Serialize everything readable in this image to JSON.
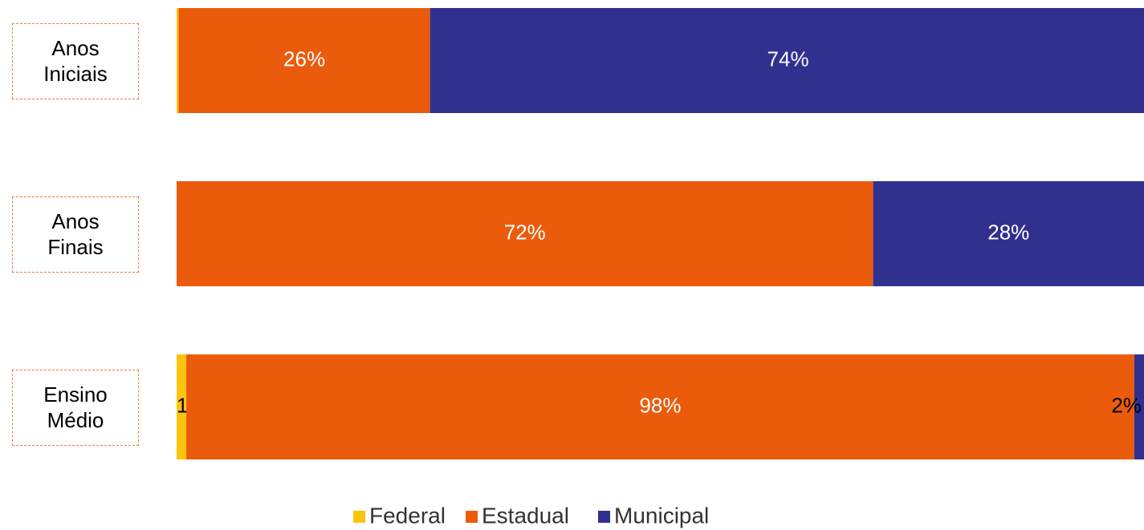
{
  "chart_data": {
    "type": "stacked-barh",
    "categories": [
      "Anos Iniciais",
      "Anos Finais",
      "Ensino Médio"
    ],
    "series": [
      {
        "name": "Federal",
        "color": "#fcc40c",
        "values": [
          0.2,
          0,
          1
        ],
        "value_labels": [
          null,
          null,
          "1%"
        ]
      },
      {
        "name": "Estadual",
        "color": "#eb5b0c",
        "values": [
          26,
          72,
          98
        ],
        "value_labels": [
          "26%",
          "72%",
          "98%"
        ]
      },
      {
        "name": "Municipal",
        "color": "#30318f",
        "values": [
          74,
          28,
          2
        ],
        "value_labels": [
          "74%",
          "28%",
          "2%"
        ]
      }
    ],
    "xlim": [
      0,
      100
    ],
    "legend": "bottom"
  }
}
